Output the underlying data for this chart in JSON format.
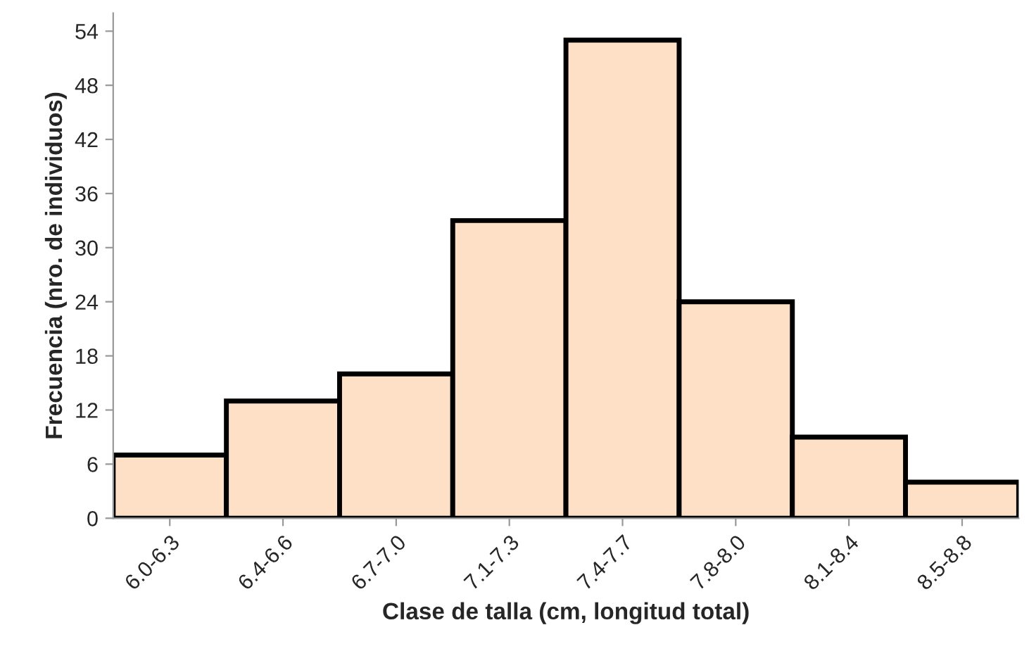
{
  "chart_data": {
    "type": "bar",
    "xlabel": "Clase de talla (cm, longitud total)",
    "ylabel": "Frecuencia (nro. de individuos)",
    "categories": [
      "6.0-6.3",
      "6.4-6.6",
      "6.7-7.0",
      "7.1-7.3",
      "7.4-7.7",
      "7.8-8.0",
      "8.1-8.4",
      "8.5-8.8"
    ],
    "values": [
      7,
      13,
      16,
      33,
      53,
      24,
      9,
      4
    ],
    "color": "#fde0c5",
    "ylim": [
      0,
      56
    ],
    "yticks": [
      0,
      6,
      12,
      18,
      24,
      30,
      36,
      42,
      48,
      54
    ],
    "grid": false,
    "legend": false
  }
}
